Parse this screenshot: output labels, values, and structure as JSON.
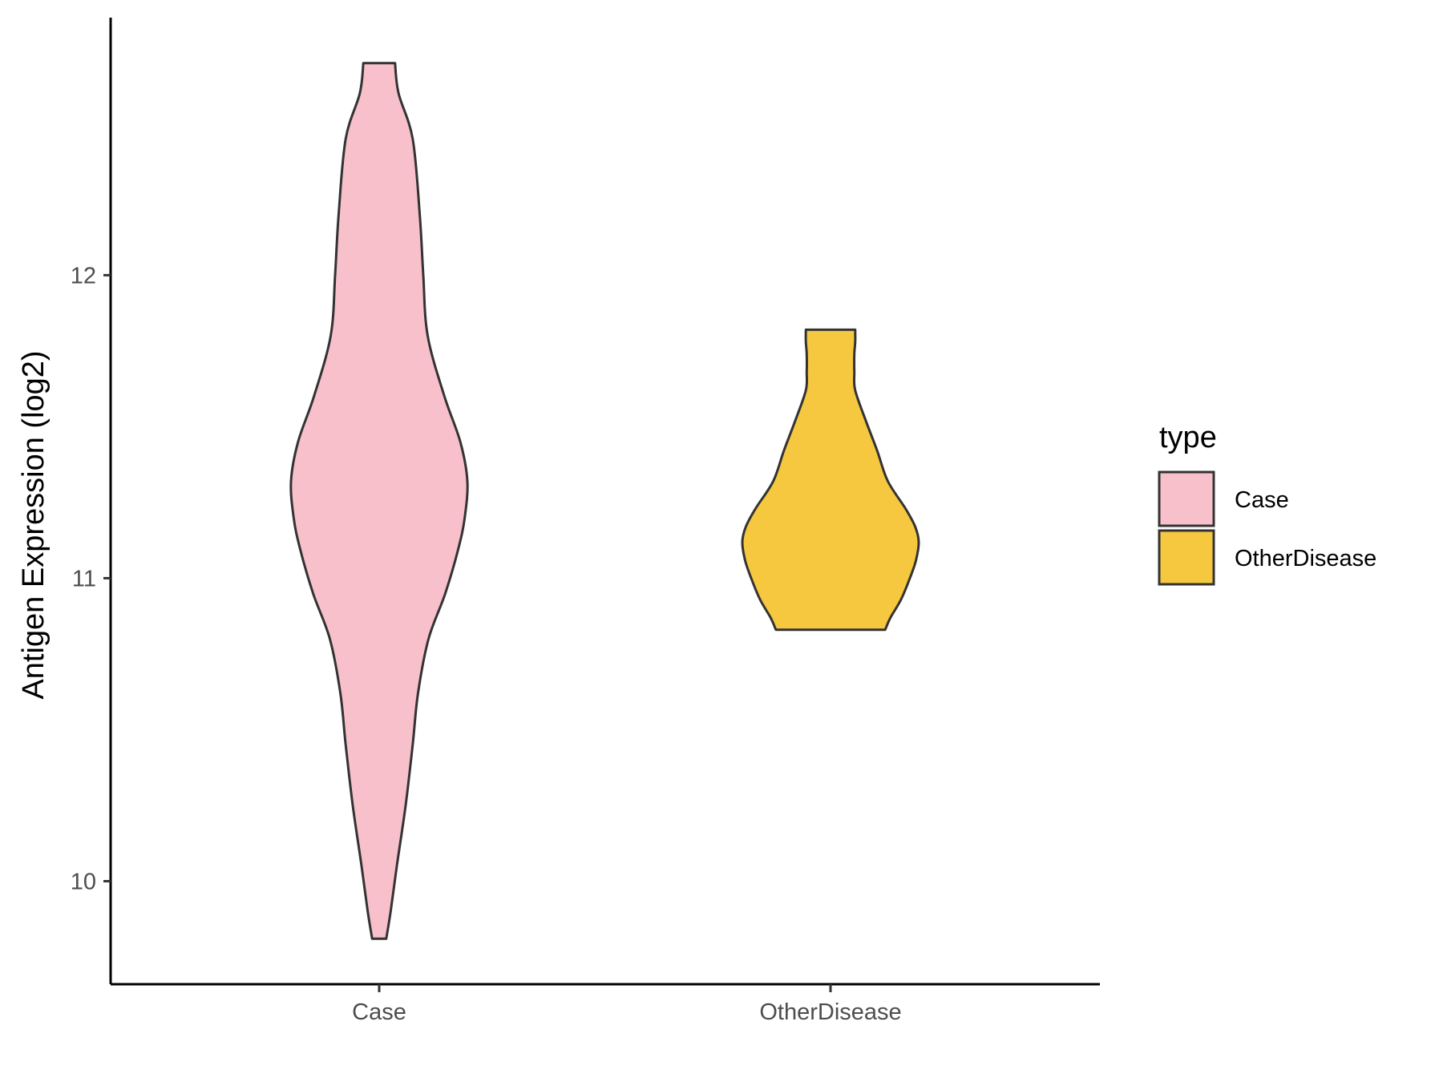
{
  "chart_data": {
    "type": "violin",
    "title": "",
    "xlabel": "",
    "ylabel": "Antigen Expression (log2)",
    "ylim": [
      9.66,
      12.85
    ],
    "y_ticks": [
      "10",
      "11",
      "12"
    ],
    "y_tick_values": [
      10,
      11,
      12
    ],
    "grid": false,
    "categories": [
      "Case",
      "OtherDisease"
    ],
    "legend": {
      "title": "type",
      "placement": "right",
      "entries": [
        "Case",
        "OtherDisease"
      ]
    },
    "series": [
      {
        "name": "Case",
        "color": "#F7C0CB",
        "y_min": 9.81,
        "y_max": 12.7,
        "density_profile": [
          [
            9.81,
            0.08
          ],
          [
            9.9,
            0.13
          ],
          [
            10.05,
            0.2
          ],
          [
            10.25,
            0.3
          ],
          [
            10.45,
            0.38
          ],
          [
            10.62,
            0.44
          ],
          [
            10.8,
            0.56
          ],
          [
            10.95,
            0.75
          ],
          [
            11.1,
            0.9
          ],
          [
            11.2,
            0.97
          ],
          [
            11.32,
            1.0
          ],
          [
            11.45,
            0.92
          ],
          [
            11.6,
            0.74
          ],
          [
            11.8,
            0.55
          ],
          [
            12.0,
            0.5
          ],
          [
            12.2,
            0.46
          ],
          [
            12.45,
            0.38
          ],
          [
            12.6,
            0.22
          ],
          [
            12.7,
            0.18
          ]
        ]
      },
      {
        "name": "OtherDisease",
        "color": "#F6C840",
        "y_min": 10.83,
        "y_max": 11.82,
        "density_profile": [
          [
            10.83,
            0.62
          ],
          [
            10.87,
            0.68
          ],
          [
            10.93,
            0.8
          ],
          [
            11.0,
            0.9
          ],
          [
            11.06,
            0.97
          ],
          [
            11.12,
            1.0
          ],
          [
            11.17,
            0.96
          ],
          [
            11.23,
            0.85
          ],
          [
            11.32,
            0.65
          ],
          [
            11.42,
            0.53
          ],
          [
            11.52,
            0.4
          ],
          [
            11.62,
            0.28
          ],
          [
            11.68,
            0.27
          ],
          [
            11.74,
            0.27
          ],
          [
            11.78,
            0.28
          ],
          [
            11.82,
            0.28
          ]
        ]
      }
    ]
  }
}
